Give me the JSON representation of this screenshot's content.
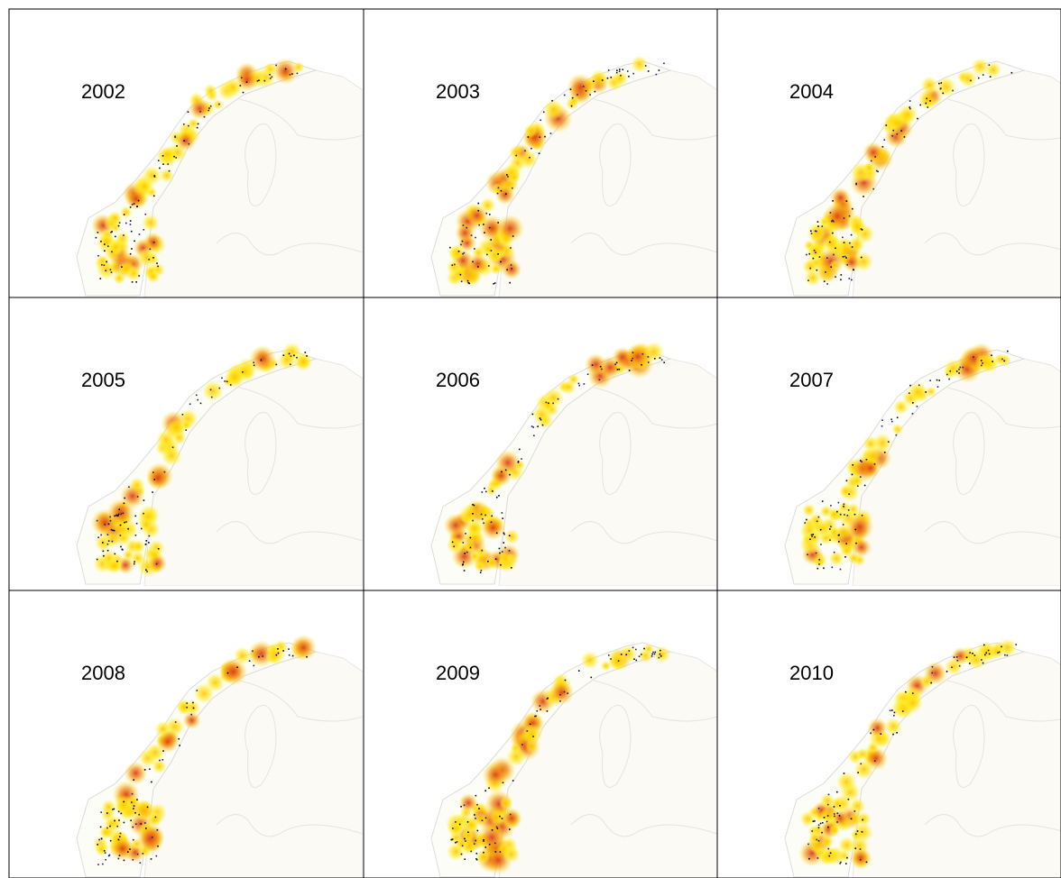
{
  "panels": [
    {
      "label": "2002"
    },
    {
      "label": "2003"
    },
    {
      "label": "2004"
    },
    {
      "label": "2005"
    },
    {
      "label": "2006"
    },
    {
      "label": "2007"
    },
    {
      "label": "2008"
    },
    {
      "label": "2009"
    },
    {
      "label": "2010"
    }
  ]
}
